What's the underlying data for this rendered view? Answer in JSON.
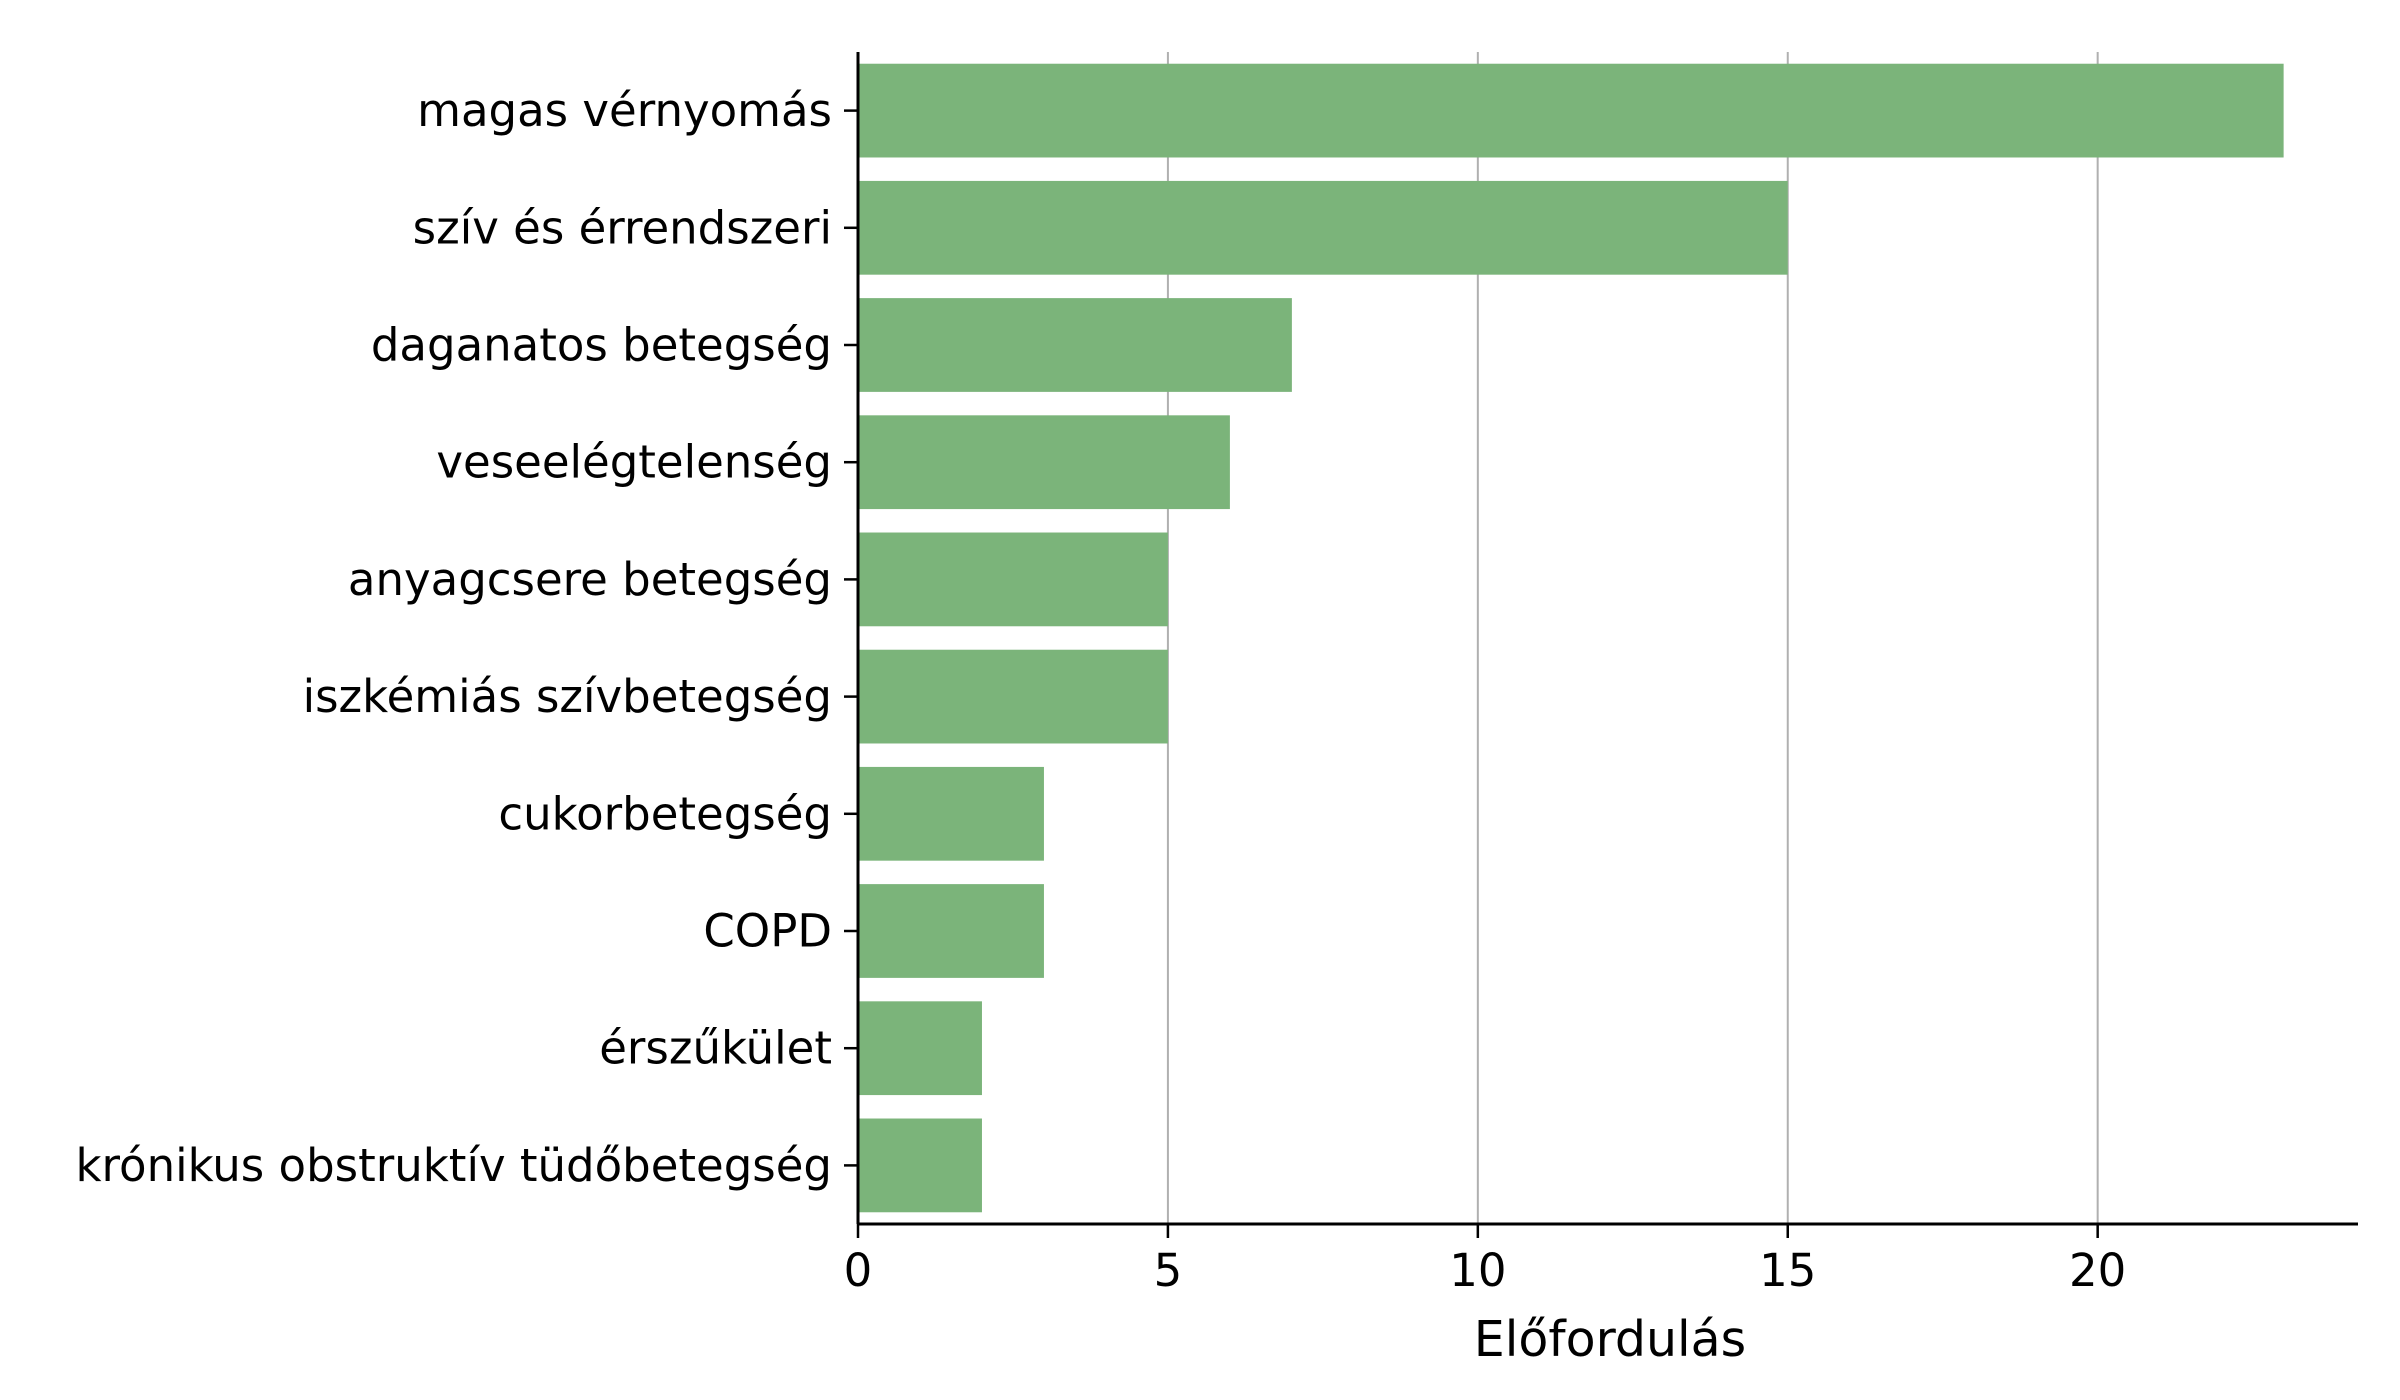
{
  "chart_data": {
    "type": "bar",
    "orientation": "horizontal",
    "title": "",
    "xlabel": "Előfordulás",
    "ylabel": "",
    "categories": [
      "magas vérnyomás",
      "szív és érrendszeri",
      "daganatos betegség",
      "veseelégtelenség",
      "anyagcsere betegség",
      "iszkémiás szívbetegség",
      "cukorbetegség",
      "COPD",
      "érszűkület",
      "krónikus obstruktív tüdőbetegség"
    ],
    "values": [
      23,
      15,
      7,
      6,
      5,
      5,
      3,
      3,
      2,
      2
    ],
    "xlim": [
      0,
      24.2
    ],
    "xticks": [
      0,
      5,
      10,
      15,
      20
    ],
    "xtick_labels": [
      "0",
      "5",
      "10",
      "15",
      "20"
    ],
    "grid": "vertical",
    "legend": "none",
    "bar_color": "#7bb47a",
    "grid_color": "#b0b0b0",
    "axis_color": "#000000"
  }
}
